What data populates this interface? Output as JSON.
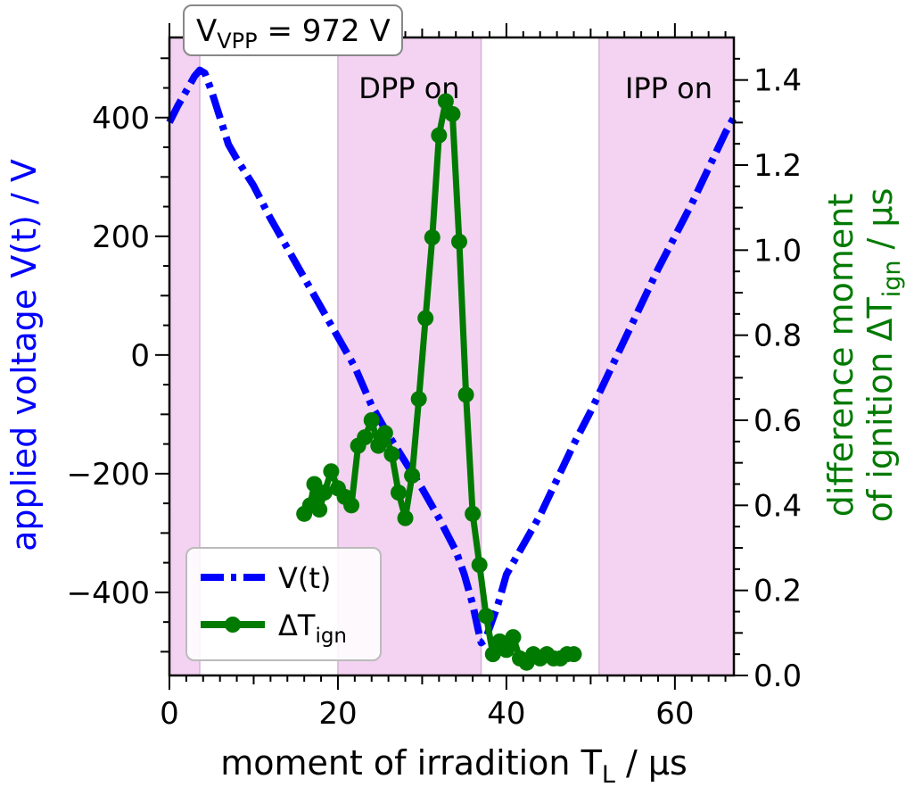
{
  "chart_data": {
    "type": "line",
    "xlabel_main": "moment of irradition T",
    "xlabel_sub": "L",
    "xlabel_unit": " / μs",
    "ylabel_left": "applied voltage V(t) / V",
    "ylabel_right_line1": "difference moment",
    "ylabel_right_line2_main": "of ignition ΔT",
    "ylabel_right_line2_sub": "ign",
    "ylabel_right_line2_unit": " / μs",
    "xlim": [
      0,
      67
    ],
    "ylim_left": [
      -540,
      535
    ],
    "ylim_right": [
      0,
      1.5
    ],
    "x_ticks": [
      "0",
      "20",
      "40",
      "60"
    ],
    "x_tick_values": [
      0,
      20,
      40,
      60
    ],
    "yleft_ticks": [
      "400",
      "200",
      "0",
      "−200",
      "−400"
    ],
    "yleft_tick_values": [
      400,
      200,
      0,
      -200,
      -400
    ],
    "yright_ticks": [
      "1.4",
      "1.2",
      "1.0",
      "0.8",
      "0.6",
      "0.4",
      "0.2",
      "0.0"
    ],
    "yright_tick_values": [
      1.4,
      1.2,
      1.0,
      0.8,
      0.6,
      0.4,
      0.2,
      0.0
    ],
    "grid": false,
    "shaded_regions": [
      {
        "x0": 0,
        "x1": 3.6
      },
      {
        "x0": 20,
        "x1": 37,
        "label": "DPP on"
      },
      {
        "x0": 51,
        "x1": 67,
        "label": "IPP on"
      }
    ],
    "header_box": {
      "main": "V",
      "sub": "VPP",
      "rest": " = 972 V"
    },
    "series": [
      {
        "name": "V(t)",
        "axis": "left",
        "color": "#0000ff",
        "style": "dashdot",
        "x": [
          0,
          1,
          2,
          3,
          3.6,
          4.2,
          5,
          6,
          7,
          8,
          10,
          12,
          14,
          16,
          18,
          20,
          22,
          24,
          26,
          28,
          30,
          32,
          34,
          35,
          36,
          36.6,
          37,
          37.5,
          38,
          39,
          40,
          42,
          44,
          46,
          48,
          50,
          52,
          54,
          56,
          58,
          60,
          62,
          64,
          66,
          67
        ],
        "y": [
          392,
          420,
          445,
          470,
          480,
          475,
          445,
          400,
          355,
          330,
          285,
          230,
          180,
          130,
          80,
          30,
          -20,
          -85,
          -135,
          -180,
          -225,
          -275,
          -330,
          -370,
          -420,
          -460,
          -485,
          -480,
          -460,
          -420,
          -370,
          -320,
          -270,
          -210,
          -150,
          -95,
          -35,
          25,
          85,
          145,
          200,
          255,
          315,
          375,
          400
        ]
      },
      {
        "name": "ΔT",
        "name_sub": "ign",
        "axis": "right",
        "color": "#007a00",
        "style": "solid-markers",
        "x": [
          16,
          16.7,
          17.2,
          17.8,
          18.4,
          19.2,
          20.0,
          20.8,
          21.6,
          22.4,
          23.2,
          24.0,
          24.8,
          25.6,
          26.4,
          27.2,
          28.0,
          28.8,
          29.6,
          30.4,
          31.2,
          32.0,
          32.8,
          33.6,
          34.4,
          35.2,
          36.0,
          36.8,
          37.6,
          38.4,
          39.2,
          40.0,
          40.8,
          41.6,
          42.4,
          43.2,
          44.0,
          44.8,
          45.6,
          46.4,
          47.2,
          48.0
        ],
        "y": [
          0.38,
          0.4,
          0.45,
          0.39,
          0.43,
          0.48,
          0.44,
          0.42,
          0.4,
          0.54,
          0.56,
          0.6,
          0.54,
          0.57,
          0.52,
          0.43,
          0.37,
          0.47,
          0.65,
          0.84,
          1.03,
          1.27,
          1.35,
          1.32,
          1.02,
          0.66,
          0.38,
          0.26,
          0.14,
          0.05,
          0.08,
          0.06,
          0.09,
          0.04,
          0.03,
          0.05,
          0.04,
          0.05,
          0.04,
          0.04,
          0.05,
          0.05
        ]
      }
    ],
    "legend": {
      "placement": "lower-left",
      "entries": [
        "V(t)",
        "ΔT"
      ]
    }
  }
}
